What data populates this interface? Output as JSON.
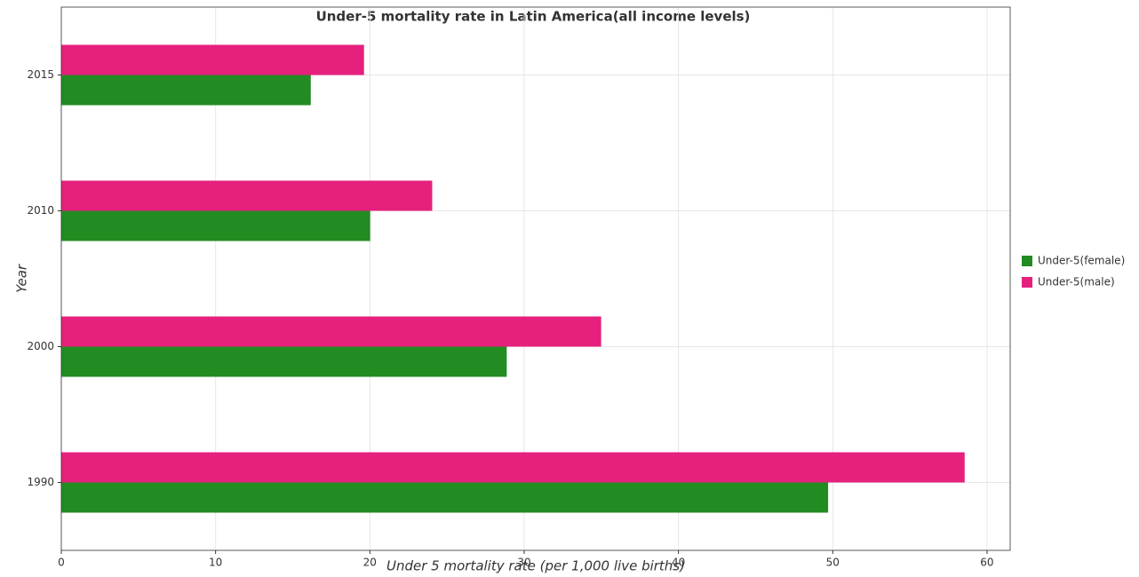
{
  "chart_data": {
    "type": "barh",
    "title": "Under-5 mortality rate in Latin America(all income levels)",
    "xlabel": "Under 5 mortality rate (per 1,000 live births)",
    "ylabel": "Year",
    "categories": [
      "1990",
      "2000",
      "2010",
      "2015"
    ],
    "series": [
      {
        "name": "Under-5(female)",
        "color": "#228b22",
        "values": [
          49.7,
          28.87,
          20.02,
          16.17
        ]
      },
      {
        "name": "Under-5(male)",
        "color": "#e6207d",
        "values": [
          58.55,
          34.99,
          24.04,
          19.62
        ]
      }
    ],
    "xlim": [
      0,
      61.5
    ],
    "xticks": [
      0,
      10,
      20,
      30,
      40,
      50,
      60
    ],
    "grid": true,
    "legend": "right"
  }
}
